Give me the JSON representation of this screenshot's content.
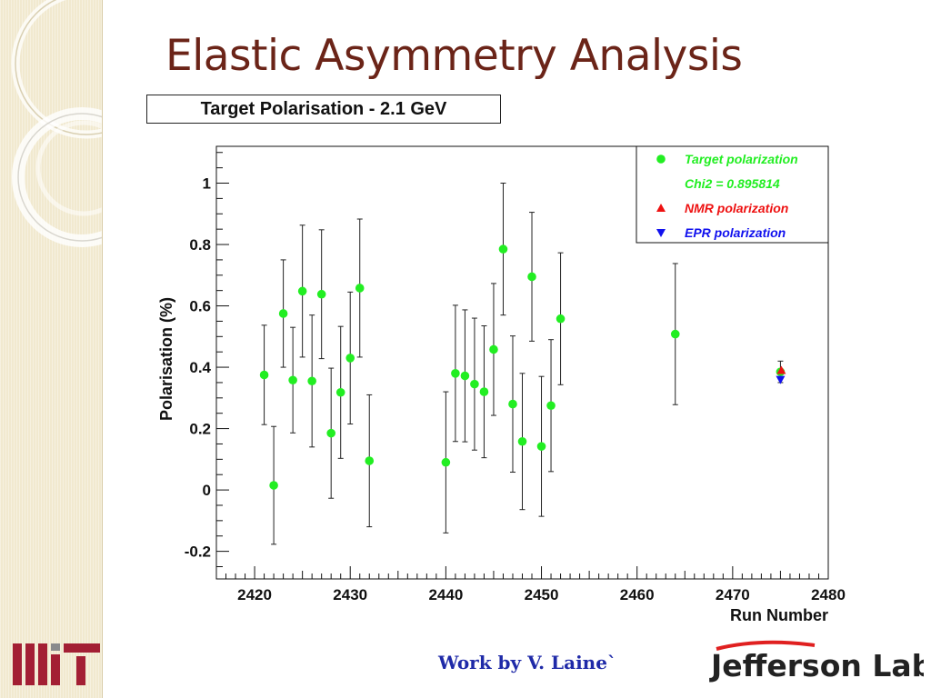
{
  "slide": {
    "title": "Elastic Asymmetry Analysis",
    "credit": "Work by V. Laine`"
  },
  "logos": {
    "left": "MIT",
    "right": "Jefferson Lab"
  },
  "colors": {
    "title": "#6b2418",
    "target": "#22ee22",
    "nmr": "#ee1111",
    "epr": "#1111ee",
    "credit": "#1f2aa8"
  },
  "chart_data": {
    "type": "scatter",
    "title": "Target Polarisation - 2.1 GeV",
    "xlabel": "Run Number",
    "ylabel": "Polarisation (%)",
    "xlim": [
      2416,
      2480
    ],
    "ylim": [
      -0.29,
      1.12
    ],
    "xticks": [
      2420,
      2430,
      2440,
      2450,
      2460,
      2470,
      2480
    ],
    "yticks": [
      -0.2,
      0,
      0.2,
      0.4,
      0.6,
      0.8,
      1
    ],
    "ytick_labels": [
      "-0.2",
      "0",
      "0.2",
      "0.4",
      "0.6",
      "0.8",
      "1"
    ],
    "grid": true,
    "legend_position": "top-right",
    "legend": [
      {
        "label": "Target polarization",
        "marker": "circle",
        "color": "#22ee22"
      },
      {
        "label": "Chi2 = 0.895814",
        "marker": "none",
        "color": "#22ee22"
      },
      {
        "label": "NMR polarization",
        "marker": "triangle-up",
        "color": "#ee1111"
      },
      {
        "label": "EPR polarization",
        "marker": "triangle-down",
        "color": "#1111ee"
      }
    ],
    "series": [
      {
        "name": "Target polarization",
        "marker": "circle",
        "color": "#22ee22",
        "x": [
          2421,
          2422,
          2423,
          2424,
          2425,
          2426,
          2427,
          2428,
          2429,
          2430,
          2431,
          2432,
          2440,
          2441,
          2442,
          2443,
          2444,
          2445,
          2446,
          2447,
          2448,
          2449,
          2450,
          2451,
          2452,
          2464,
          2475
        ],
        "y": [
          0.375,
          0.015,
          0.575,
          0.358,
          0.648,
          0.355,
          0.638,
          0.185,
          0.318,
          0.43,
          0.658,
          0.095,
          0.09,
          0.38,
          0.372,
          0.345,
          0.32,
          0.458,
          0.785,
          0.28,
          0.158,
          0.695,
          0.142,
          0.275,
          0.558,
          0.508,
          0.385
        ],
        "yerr": [
          0.162,
          0.192,
          0.175,
          0.172,
          0.215,
          0.215,
          0.21,
          0.212,
          0.215,
          0.215,
          0.225,
          0.215,
          0.23,
          0.222,
          0.215,
          0.215,
          0.215,
          0.215,
          0.215,
          0.222,
          0.222,
          0.21,
          0.228,
          0.215,
          0.215,
          0.23,
          0.035
        ]
      },
      {
        "name": "NMR polarization",
        "marker": "triangle-up",
        "color": "#ee1111",
        "x": [
          2475
        ],
        "y": [
          0.39
        ]
      },
      {
        "name": "EPR polarization",
        "marker": "triangle-down",
        "color": "#1111ee",
        "x": [
          2475
        ],
        "y": [
          0.36
        ]
      }
    ]
  }
}
